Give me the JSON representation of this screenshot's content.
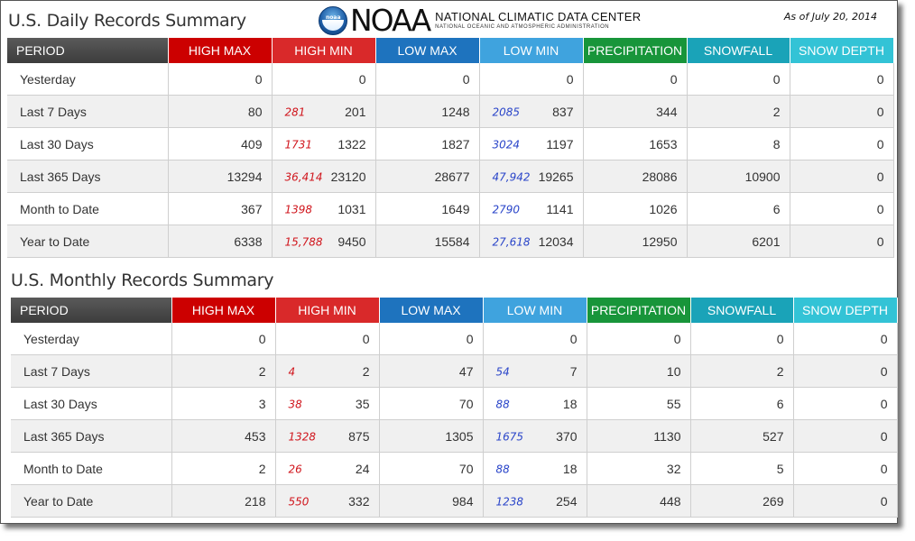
{
  "header": {
    "daily_title": "U.S. Daily Records Summary",
    "monthly_title": "U.S. Monthly Records Summary",
    "logo_word": "NOAA",
    "logo_badge": "noaa",
    "org_line1": "NATIONAL CLIMATIC DATA CENTER",
    "org_line2": "NATIONAL OCEANIC AND ATMOSPHERIC ADMINISTRATION",
    "as_of": "As of July 20, 2014"
  },
  "columns": [
    "PERIOD",
    "HIGH MAX",
    "HIGH MIN",
    "LOW MAX",
    "LOW MIN",
    "PRECIPITATION",
    "SNOWFALL",
    "SNOW DEPTH"
  ],
  "colors": {
    "period": "#4a4a4a",
    "high_max": "#cc0000",
    "high_min": "#d9292a",
    "low_max": "#1e73be",
    "low_min": "#3fa3de",
    "precipitation": "#18953a",
    "snowfall": "#1aa3b8",
    "snow_depth": "#33c3d6",
    "record_red": "#d0151c",
    "record_blue": "#2a45c9"
  },
  "daily": [
    {
      "period": "Yesterday",
      "high_max": "0",
      "high_min_rec": "",
      "high_min": "0",
      "low_max": "0",
      "low_min_rec": "",
      "low_min": "0",
      "precipitation": "0",
      "snowfall": "0",
      "snow_depth": "0"
    },
    {
      "period": "Last 7 Days",
      "high_max": "80",
      "high_min_rec": "281",
      "high_min": "201",
      "low_max": "1248",
      "low_min_rec": "2085",
      "low_min": "837",
      "precipitation": "344",
      "snowfall": "2",
      "snow_depth": "0"
    },
    {
      "period": "Last 30 Days",
      "high_max": "409",
      "high_min_rec": "1731",
      "high_min": "1322",
      "low_max": "1827",
      "low_min_rec": "3024",
      "low_min": "1197",
      "precipitation": "1653",
      "snowfall": "8",
      "snow_depth": "0"
    },
    {
      "period": "Last 365 Days",
      "high_max": "13294",
      "high_min_rec": "36,414",
      "high_min": "23120",
      "low_max": "28677",
      "low_min_rec": "47,942",
      "low_min": "19265",
      "precipitation": "28086",
      "snowfall": "10900",
      "snow_depth": "0"
    },
    {
      "period": "Month to Date",
      "high_max": "367",
      "high_min_rec": "1398",
      "high_min": "1031",
      "low_max": "1649",
      "low_min_rec": "2790",
      "low_min": "1141",
      "precipitation": "1026",
      "snowfall": "6",
      "snow_depth": "0"
    },
    {
      "period": "Year to Date",
      "high_max": "6338",
      "high_min_rec": "15,788",
      "high_min": "9450",
      "low_max": "15584",
      "low_min_rec": "27,618",
      "low_min": "12034",
      "precipitation": "12950",
      "snowfall": "6201",
      "snow_depth": "0"
    }
  ],
  "monthly": [
    {
      "period": "Yesterday",
      "high_max": "0",
      "high_min_rec": "",
      "high_min": "0",
      "low_max": "0",
      "low_min_rec": "",
      "low_min": "0",
      "precipitation": "0",
      "snowfall": "0",
      "snow_depth": "0"
    },
    {
      "period": "Last 7 Days",
      "high_max": "2",
      "high_min_rec": "4",
      "high_min": "2",
      "low_max": "47",
      "low_min_rec": "54",
      "low_min": "7",
      "precipitation": "10",
      "snowfall": "2",
      "snow_depth": "0"
    },
    {
      "period": "Last 30 Days",
      "high_max": "3",
      "high_min_rec": "38",
      "high_min": "35",
      "low_max": "70",
      "low_min_rec": "88",
      "low_min": "18",
      "precipitation": "55",
      "snowfall": "6",
      "snow_depth": "0"
    },
    {
      "period": "Last 365 Days",
      "high_max": "453",
      "high_min_rec": "1328",
      "high_min": "875",
      "low_max": "1305",
      "low_min_rec": "1675",
      "low_min": "370",
      "precipitation": "1130",
      "snowfall": "527",
      "snow_depth": "0"
    },
    {
      "period": "Month to Date",
      "high_max": "2",
      "high_min_rec": "26",
      "high_min": "24",
      "low_max": "70",
      "low_min_rec": "88",
      "low_min": "18",
      "precipitation": "32",
      "snowfall": "5",
      "snow_depth": "0"
    },
    {
      "period": "Year to Date",
      "high_max": "218",
      "high_min_rec": "550",
      "high_min": "332",
      "low_max": "984",
      "low_min_rec": "1238",
      "low_min": "254",
      "precipitation": "448",
      "snowfall": "269",
      "snow_depth": "0"
    }
  ]
}
